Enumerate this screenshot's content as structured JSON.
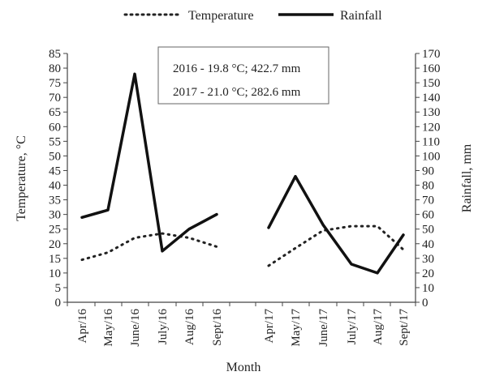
{
  "chart_data": {
    "type": "line",
    "xlabel": "Month",
    "ylabel_left": "Temperature, °C",
    "ylabel_right": "Rainfall, mm",
    "ylim_left": [
      0,
      85
    ],
    "ylim_right": [
      0,
      170
    ],
    "yticks_left": [
      "0",
      "5",
      "10",
      "15",
      "20",
      "25",
      "30",
      "35",
      "40",
      "45",
      "50",
      "55",
      "60",
      "65",
      "70",
      "75",
      "80",
      "85"
    ],
    "yticks_right": [
      "0",
      "10",
      "20",
      "30",
      "40",
      "50",
      "60",
      "70",
      "80",
      "90",
      "100",
      "110",
      "120",
      "130",
      "140",
      "150",
      "160",
      "170"
    ],
    "categories": [
      "Apr/16",
      "May/16",
      "June/16",
      "July/16",
      "Aug/16",
      "Sept/16",
      "Apr/17",
      "May/17",
      "June/17",
      "July/17",
      "Aug/17",
      "Sept/17"
    ],
    "grid": false,
    "legend_position": "top",
    "annotations": [
      "2016 - 19.8 °C; 422.7 mm",
      "2017 - 21.0 °C; 282.6 mm"
    ],
    "series": [
      {
        "name": "Temperature",
        "axis": "left",
        "style": "dotted",
        "color": "#222222",
        "segments": [
          {
            "categories": [
              "Apr/16",
              "May/16",
              "June/16",
              "July/16",
              "Aug/16",
              "Sept/16"
            ],
            "values": [
              14.5,
              17.0,
              22.0,
              23.5,
              22.0,
              19.0
            ]
          },
          {
            "categories": [
              "Apr/17",
              "May/17",
              "June/17",
              "July/17",
              "Aug/17",
              "Sept/17"
            ],
            "values": [
              12.5,
              18.5,
              24.5,
              26.0,
              26.0,
              18.0
            ]
          }
        ]
      },
      {
        "name": "Rainfall",
        "axis": "right",
        "style": "solid",
        "color": "#111111",
        "segments": [
          {
            "categories": [
              "Apr/16",
              "May/16",
              "June/16",
              "July/16",
              "Aug/16",
              "Sept/16"
            ],
            "values": [
              58,
              63,
              156,
              35,
              50,
              60
            ]
          },
          {
            "categories": [
              "Apr/17",
              "May/17",
              "June/17",
              "July/17",
              "Aug/17",
              "Sept/17"
            ],
            "values": [
              51,
              86,
              53,
              26,
              20,
              46
            ]
          }
        ]
      }
    ]
  }
}
